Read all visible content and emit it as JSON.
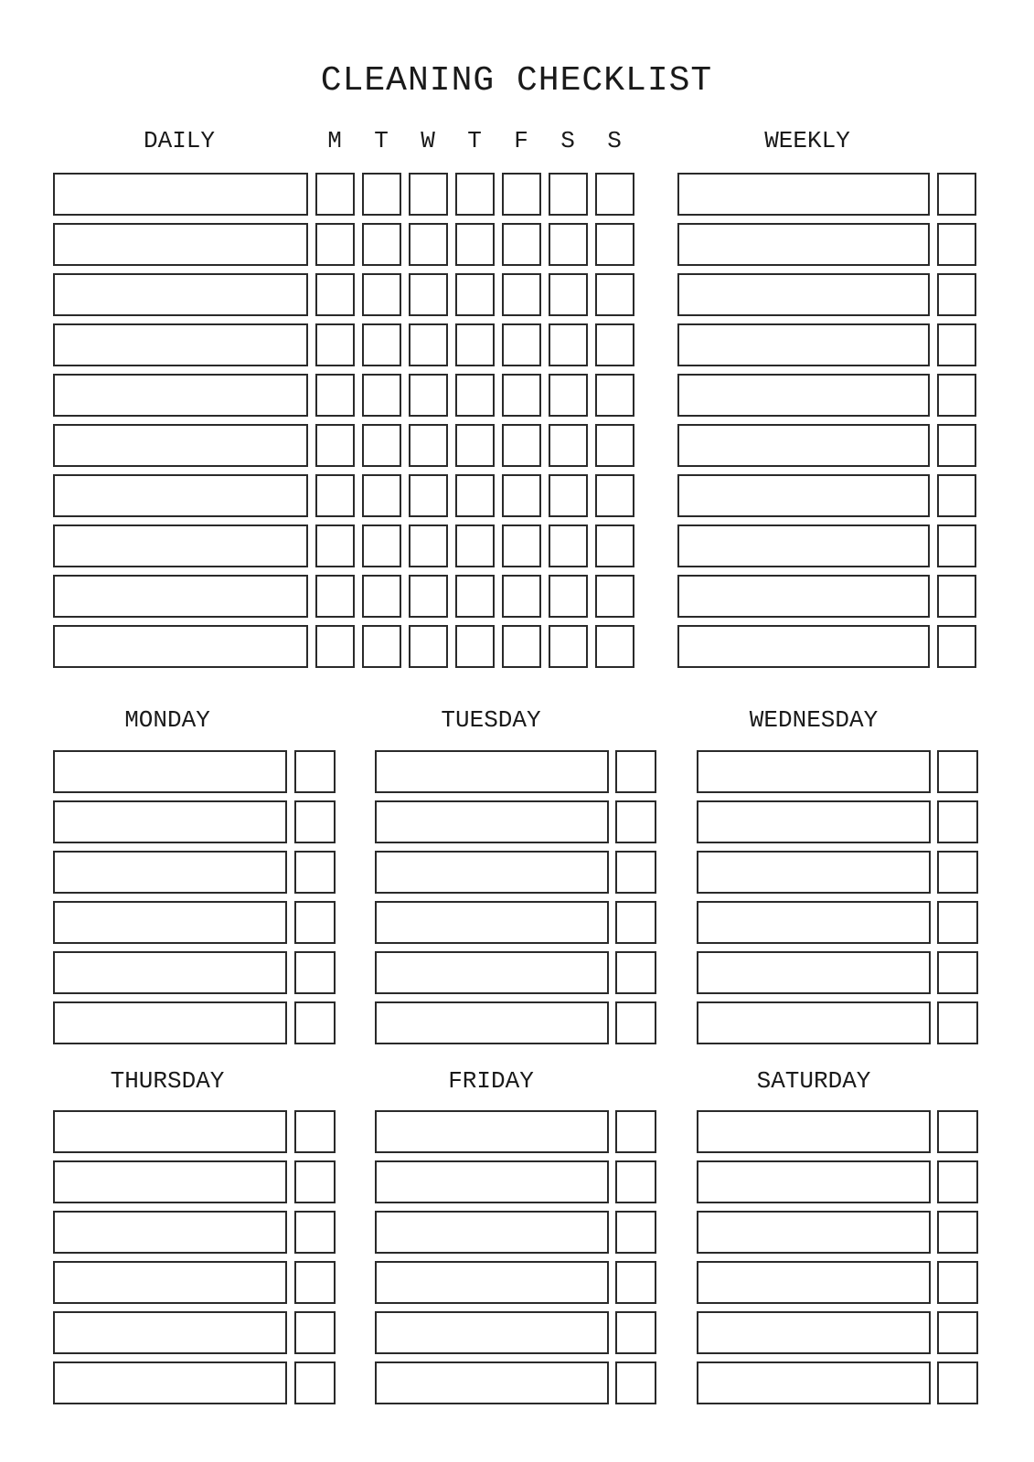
{
  "title": "CLEANING CHECKLIST",
  "daily": {
    "heading": "DAILY",
    "days": [
      "M",
      "T",
      "W",
      "T",
      "F",
      "S",
      "S"
    ]
  },
  "weekly": {
    "heading": "WEEKLY"
  },
  "days": [
    "MONDAY",
    "TUESDAY",
    "WEDNESDAY",
    "THURSDAY",
    "FRIDAY",
    "SATURDAY"
  ]
}
